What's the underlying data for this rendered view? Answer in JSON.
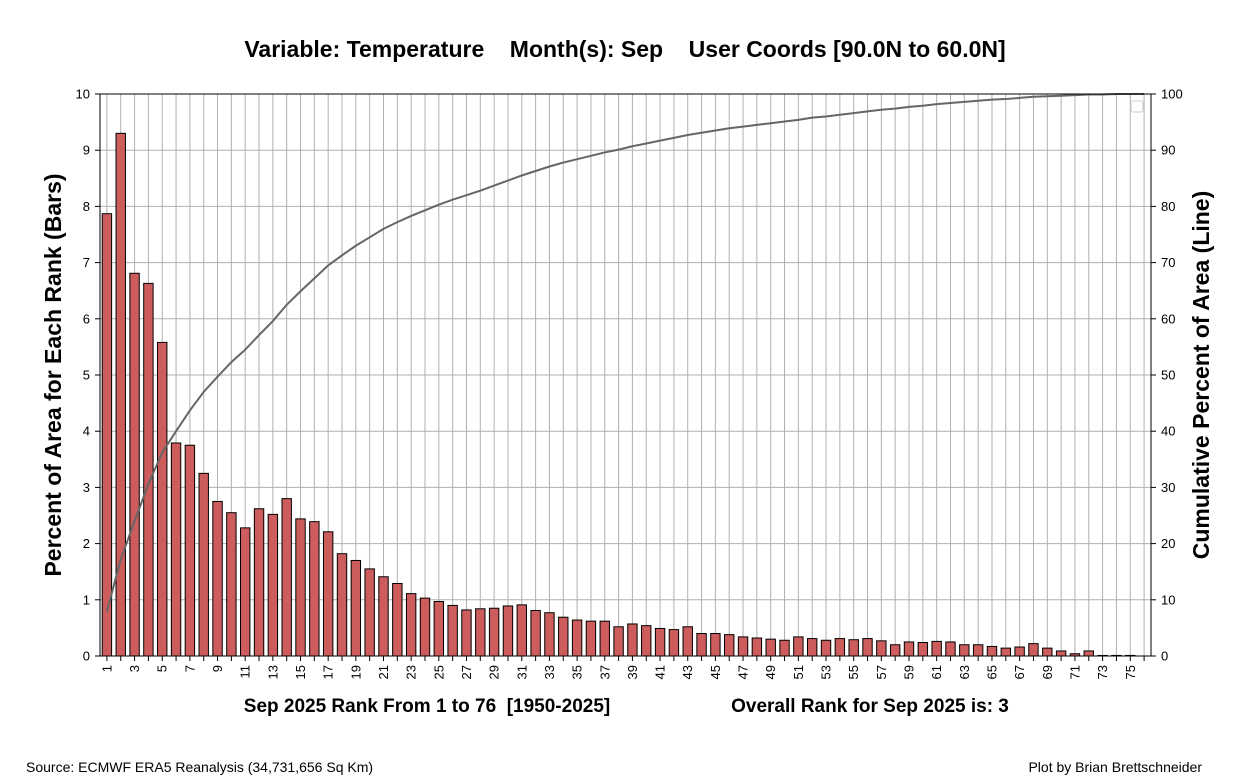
{
  "chart_data": {
    "type": "bar",
    "title": "Variable: Temperature    Month(s): Sep    User Coords [90.0N to 60.0N]",
    "xlabel": "Sep 2025 Rank From 1 to 76  [1950-2025]",
    "xlabel_right": "Overall Rank for Sep 2025 is: 3",
    "ylabel": "Percent of Area for Each Rank (Bars)",
    "ylabel_right": "Cumulative Percent of Area (Line)",
    "source": "Source: ECMWF ERA5 Reanalysis (34,731,656 Sq Km)",
    "credit": "Plot by Brian Brettschneider",
    "ylim": [
      0,
      10
    ],
    "ylim_right": [
      0,
      100
    ],
    "y_ticks": [
      "0",
      "1",
      "2",
      "3",
      "4",
      "5",
      "6",
      "7",
      "8",
      "9",
      "10"
    ],
    "y_ticks_right": [
      "0",
      "10",
      "20",
      "30",
      "40",
      "50",
      "60",
      "70",
      "80",
      "90",
      "100"
    ],
    "x_tick_labels": [
      "1",
      "3",
      "5",
      "7",
      "9",
      "11",
      "13",
      "15",
      "17",
      "19",
      "21",
      "23",
      "25",
      "27",
      "29",
      "31",
      "33",
      "35",
      "37",
      "39",
      "41",
      "43",
      "45",
      "47",
      "49",
      "51",
      "53",
      "55",
      "57",
      "59",
      "61",
      "63",
      "65",
      "67",
      "69",
      "71",
      "73",
      "75"
    ],
    "grid": true,
    "legend_placement": "top-right",
    "colors": {
      "bar": "#cd5c5c",
      "bar_edge": "#000000",
      "line": "#666666",
      "grid": "#b0b0b0"
    },
    "categories": [
      1,
      2,
      3,
      4,
      5,
      6,
      7,
      8,
      9,
      10,
      11,
      12,
      13,
      14,
      15,
      16,
      17,
      18,
      19,
      20,
      21,
      22,
      23,
      24,
      25,
      26,
      27,
      28,
      29,
      30,
      31,
      32,
      33,
      34,
      35,
      36,
      37,
      38,
      39,
      40,
      41,
      42,
      43,
      44,
      45,
      46,
      47,
      48,
      49,
      50,
      51,
      52,
      53,
      54,
      55,
      56,
      57,
      58,
      59,
      60,
      61,
      62,
      63,
      64,
      65,
      66,
      67,
      68,
      69,
      70,
      71,
      72,
      73,
      74,
      75,
      76
    ],
    "series": [
      {
        "values": [
          7.87,
          9.3,
          6.81,
          6.63,
          5.58,
          3.79,
          3.75,
          3.25,
          2.75,
          2.55,
          2.28,
          2.62,
          2.52,
          2.8,
          2.44,
          2.39,
          2.21,
          1.82,
          1.7,
          1.55,
          1.41,
          1.29,
          1.11,
          1.03,
          0.97,
          0.9,
          0.82,
          0.84,
          0.85,
          0.89,
          0.91,
          0.81,
          0.77,
          0.69,
          0.64,
          0.62,
          0.62,
          0.52,
          0.57,
          0.54,
          0.49,
          0.47,
          0.52,
          0.4,
          0.4,
          0.38,
          0.34,
          0.32,
          0.3,
          0.28,
          0.34,
          0.31,
          0.28,
          0.31,
          0.29,
          0.31,
          0.27,
          0.2,
          0.25,
          0.24,
          0.26,
          0.25,
          0.2,
          0.2,
          0.17,
          0.14,
          0.16,
          0.22,
          0.14,
          0.09,
          0.04,
          0.09,
          0.01,
          0.01,
          0.01,
          0.0
        ]
      },
      {
        "type": "line",
        "values": [
          7.9,
          17.2,
          24.0,
          30.6,
          36.2,
          40.0,
          43.7,
          47.0,
          49.7,
          52.3,
          54.5,
          57.1,
          59.6,
          62.5,
          64.9,
          67.2,
          69.5,
          71.3,
          73.0,
          74.5,
          76.0,
          77.2,
          78.3,
          79.3,
          80.3,
          81.2,
          82.0,
          82.8,
          83.7,
          84.6,
          85.5,
          86.3,
          87.1,
          87.8,
          88.4,
          89.0,
          89.6,
          90.1,
          90.7,
          91.2,
          91.7,
          92.2,
          92.7,
          93.1,
          93.5,
          93.9,
          94.2,
          94.5,
          94.8,
          95.1,
          95.4,
          95.8,
          96.0,
          96.3,
          96.6,
          96.9,
          97.2,
          97.4,
          97.7,
          97.9,
          98.2,
          98.4,
          98.6,
          98.8,
          99.0,
          99.1,
          99.3,
          99.5,
          99.6,
          99.7,
          99.8,
          99.9,
          99.9,
          100.0,
          100.0,
          100.0
        ]
      }
    ]
  }
}
